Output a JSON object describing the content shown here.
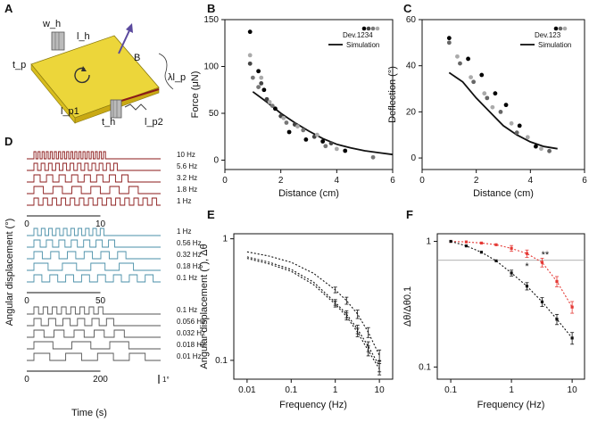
{
  "figure": {
    "panels": [
      "A",
      "B",
      "C",
      "D",
      "E",
      "F"
    ]
  },
  "schematic_A": {
    "labels": [
      "w_h",
      "l_h",
      "t_p",
      "B",
      "λl_p",
      "l_p1",
      "t_h",
      "l_p2"
    ]
  },
  "chart_data": [
    {
      "id": "B",
      "type": "scatter",
      "xlabel": "Distance (cm)",
      "ylabel": "Force (μN)",
      "xlim": [
        0,
        6
      ],
      "ylim": [
        -10,
        150
      ],
      "xticks": [
        0,
        2,
        4,
        6
      ],
      "yticks": [
        0,
        50,
        100,
        150
      ],
      "legend": {
        "placement": "top-right",
        "dev_label": "Dev.",
        "dev_ids": [
          "1",
          "2",
          "3",
          "4"
        ],
        "line_label": "Simulation"
      },
      "dev_colors": [
        "#000000",
        "#444444",
        "#777777",
        "#aaaaaa"
      ],
      "series": [
        {
          "name": "1",
          "points": [
            [
              0.9,
              137
            ],
            [
              1.2,
              95
            ],
            [
              1.4,
              75
            ],
            [
              1.8,
              55
            ],
            [
              2.3,
              30
            ],
            [
              2.9,
              22
            ],
            [
              3.5,
              20
            ],
            [
              4.3,
              10
            ]
          ]
        },
        {
          "name": "2",
          "points": [
            [
              0.9,
              103
            ],
            [
              1.3,
              82
            ],
            [
              1.5,
              65
            ],
            [
              2.0,
              47
            ],
            [
              2.5,
              38
            ],
            [
              3.2,
              25
            ],
            [
              3.8,
              18
            ]
          ]
        },
        {
          "name": "3",
          "points": [
            [
              1.0,
              88
            ],
            [
              1.2,
              78
            ],
            [
              1.7,
              58
            ],
            [
              2.2,
              40
            ],
            [
              2.8,
              32
            ],
            [
              3.6,
              15
            ],
            [
              5.3,
              3
            ]
          ]
        },
        {
          "name": "4",
          "points": [
            [
              0.9,
              112
            ],
            [
              1.3,
              88
            ],
            [
              1.6,
              62
            ],
            [
              2.1,
              45
            ],
            [
              2.6,
              36
            ],
            [
              3.3,
              27
            ],
            [
              4.0,
              12
            ]
          ]
        }
      ],
      "simulation": {
        "x": [
          1,
          1.5,
          2,
          2.5,
          3,
          3.5,
          4,
          4.5,
          5,
          5.5,
          6
        ],
        "y": [
          73,
          62,
          50,
          40,
          31,
          23,
          17,
          13,
          10,
          8,
          6
        ]
      }
    },
    {
      "id": "C",
      "type": "scatter",
      "xlabel": "Distance (cm)",
      "ylabel": "Deflection (°)",
      "xlim": [
        0,
        6
      ],
      "ylim": [
        -5,
        60
      ],
      "xticks": [
        0,
        2,
        4,
        6
      ],
      "yticks": [
        0,
        20,
        40,
        60
      ],
      "legend": {
        "placement": "top-right",
        "dev_label": "Dev.",
        "dev_ids": [
          "1",
          "2",
          "3"
        ],
        "line_label": "Simulation"
      },
      "dev_colors": [
        "#000000",
        "#666666",
        "#aaaaaa"
      ],
      "series": [
        {
          "name": "1",
          "points": [
            [
              1.0,
              52
            ],
            [
              1.7,
              43
            ],
            [
              2.2,
              36
            ],
            [
              2.7,
              28
            ],
            [
              3.1,
              23
            ],
            [
              3.6,
              14
            ],
            [
              4.2,
              5
            ]
          ]
        },
        {
          "name": "2",
          "points": [
            [
              1.0,
              50
            ],
            [
              1.4,
              41
            ],
            [
              1.9,
              33
            ],
            [
              2.4,
              26
            ],
            [
              2.9,
              20
            ],
            [
              3.5,
              11
            ],
            [
              4.7,
              3
            ]
          ]
        },
        {
          "name": "3",
          "points": [
            [
              1.3,
              44
            ],
            [
              1.8,
              35
            ],
            [
              2.3,
              28
            ],
            [
              2.6,
              22
            ],
            [
              3.3,
              15
            ],
            [
              3.9,
              9
            ],
            [
              4.4,
              4
            ]
          ]
        }
      ],
      "simulation": {
        "x": [
          1,
          1.5,
          2,
          2.5,
          3,
          3.5,
          4,
          4.5,
          5
        ],
        "y": [
          37,
          33,
          26,
          20,
          14,
          10,
          7,
          5,
          4
        ]
      }
    },
    {
      "id": "E",
      "type": "line",
      "xscale": "log",
      "yscale": "log",
      "xlabel": "Frequency (Hz)",
      "ylabel": "Angular displacement (°), Δθ",
      "xlim": [
        0.005,
        20
      ],
      "ylim": [
        0.07,
        1.1
      ],
      "xticks": [
        0.01,
        0.1,
        1,
        10
      ],
      "xtick_labels": [
        "0.01",
        "0.1",
        "1",
        "10"
      ],
      "yticks": [
        0.1,
        1
      ],
      "ytick_labels": [
        "0.1",
        "1"
      ],
      "x": [
        0.01,
        0.032,
        0.1,
        0.32,
        1,
        1.8,
        3.2,
        5.6,
        10
      ],
      "series": [
        {
          "values": [
            0.78,
            0.72,
            0.64,
            0.52,
            0.38,
            0.31,
            0.24,
            0.17,
            0.11
          ]
        },
        {
          "values": [
            0.71,
            0.64,
            0.56,
            0.44,
            0.3,
            0.24,
            0.18,
            0.13,
            0.09
          ]
        },
        {
          "values": [
            0.69,
            0.62,
            0.54,
            0.42,
            0.29,
            0.23,
            0.17,
            0.12,
            0.085
          ]
        }
      ]
    },
    {
      "id": "F",
      "type": "line",
      "xscale": "log",
      "yscale": "log",
      "xlabel": "Frequency (Hz)",
      "ylabel": "Δθ/Δθ0.1",
      "xlim": [
        0.06,
        16
      ],
      "ylim": [
        0.08,
        1.15
      ],
      "xticks": [
        0.1,
        1,
        10
      ],
      "xtick_labels": [
        "0.1",
        "1",
        "10"
      ],
      "yticks": [
        0.1,
        1
      ],
      "ytick_labels": [
        "0.1",
        "1"
      ],
      "annotations": [
        "*",
        "**"
      ],
      "reference_level": 0.707,
      "x": [
        0.1,
        0.18,
        0.32,
        0.56,
        1,
        1.8,
        3.2,
        5.6,
        10
      ],
      "series": [
        {
          "color": "#e53935",
          "values": [
            1.0,
            0.99,
            0.97,
            0.94,
            0.88,
            0.8,
            0.68,
            0.48,
            0.3
          ]
        },
        {
          "color": "#111111",
          "values": [
            1.0,
            0.92,
            0.82,
            0.7,
            0.56,
            0.44,
            0.33,
            0.24,
            0.17
          ]
        }
      ]
    }
  ],
  "panel_D": {
    "ylabel": "Angular displacement (°)",
    "xlabel": "Time (s)",
    "scale_bar": "1°",
    "groups": [
      {
        "color": "#8b1a1a",
        "frequencies": [
          "10 Hz",
          "5.6 Hz",
          "3.2 Hz",
          "1.8 Hz",
          "1 Hz"
        ],
        "xticks": [
          "0",
          "10"
        ]
      },
      {
        "color": "#4a8fa8",
        "frequencies": [
          "1 Hz",
          "0.56 Hz",
          "0.32 Hz",
          "0.18 Hz",
          "0.1 Hz"
        ],
        "xticks": [
          "0",
          "50"
        ]
      },
      {
        "color": "#555555",
        "frequencies": [
          "0.1 Hz",
          "0.056 Hz",
          "0.032 Hz",
          "0.018 Hz",
          "0.01 Hz"
        ],
        "xticks": [
          "0",
          "200"
        ]
      }
    ]
  }
}
